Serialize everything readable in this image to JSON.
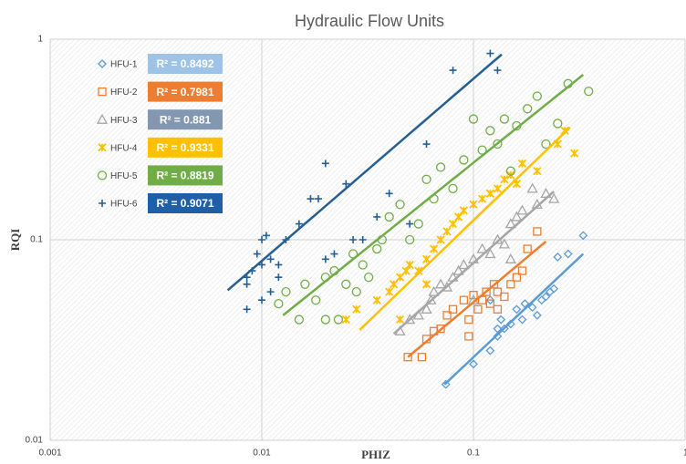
{
  "chart_data": {
    "type": "scatter",
    "title": "Hydraulic Flow Units",
    "x_label": "PHIZ",
    "y_label": "RQI",
    "log_x": true,
    "log_y": true,
    "grid": true,
    "legend": "upper left",
    "xlim": [
      0.001,
      1
    ],
    "ylim": [
      0.01,
      1
    ],
    "xticks": [
      0.001,
      0.01,
      0.1,
      1
    ],
    "yticks": [
      0.01,
      0.1,
      1
    ],
    "series": [
      {
        "name": "HFU-1",
        "color": "#5b9bd5",
        "marker": "diamond",
        "r2_label": "R² = 0.8492",
        "r2_color": "#9dc3e6",
        "x": [
          0.074,
          0.1,
          0.12,
          0.13,
          0.135,
          0.14,
          0.15,
          0.16,
          0.17,
          0.175,
          0.19,
          0.2,
          0.21,
          0.23,
          0.24,
          0.22,
          0.25,
          0.28,
          0.33,
          0.12,
          0.13
        ],
        "values": [
          0.019,
          0.024,
          0.028,
          0.033,
          0.04,
          0.036,
          0.038,
          0.045,
          0.04,
          0.048,
          0.046,
          0.042,
          0.05,
          0.055,
          0.057,
          0.052,
          0.082,
          0.085,
          0.105,
          0.05,
          0.036
        ],
        "trendline": {
          "x": [
            0.073,
            0.33
          ],
          "values": [
            0.019,
            0.085
          ]
        }
      },
      {
        "name": "HFU-2",
        "color": "#ed7d31",
        "marker": "square",
        "r2_label": "R² = 0.7981",
        "r2_color": "#ed7d31",
        "x": [
          0.049,
          0.057,
          0.06,
          0.065,
          0.07,
          0.075,
          0.08,
          0.09,
          0.095,
          0.1,
          0.105,
          0.11,
          0.115,
          0.12,
          0.125,
          0.13,
          0.14,
          0.15,
          0.16,
          0.17,
          0.18,
          0.2,
          0.095,
          0.13
        ],
        "values": [
          0.026,
          0.026,
          0.032,
          0.035,
          0.036,
          0.042,
          0.045,
          0.05,
          0.04,
          0.053,
          0.045,
          0.05,
          0.055,
          0.048,
          0.06,
          0.055,
          0.052,
          0.06,
          0.065,
          0.07,
          0.09,
          0.11,
          0.033,
          0.045
        ],
        "trendline": {
          "x": [
            0.049,
            0.22
          ],
          "values": [
            0.026,
            0.098
          ]
        }
      },
      {
        "name": "HFU-3",
        "color": "#a5a5a5",
        "marker": "triangle",
        "r2_label": "R² = 0.881",
        "r2_color": "#8497b0",
        "x": [
          0.045,
          0.05,
          0.055,
          0.06,
          0.063,
          0.065,
          0.07,
          0.075,
          0.08,
          0.085,
          0.09,
          0.1,
          0.11,
          0.12,
          0.13,
          0.14,
          0.15,
          0.16,
          0.17,
          0.2,
          0.22,
          0.24,
          0.15,
          0.1,
          0.19
        ],
        "values": [
          0.035,
          0.04,
          0.042,
          0.045,
          0.05,
          0.055,
          0.06,
          0.058,
          0.065,
          0.07,
          0.075,
          0.08,
          0.09,
          0.085,
          0.1,
          0.095,
          0.12,
          0.13,
          0.14,
          0.15,
          0.17,
          0.16,
          0.08,
          0.05,
          0.18
        ],
        "trendline": {
          "x": [
            0.042,
            0.24
          ],
          "values": [
            0.034,
            0.174
          ]
        }
      },
      {
        "name": "HFU-4",
        "color": "#ffc000",
        "marker": "asterisk",
        "r2_label": "R² = 0.9331",
        "r2_color": "#ffc000",
        "x": [
          0.025,
          0.028,
          0.035,
          0.04,
          0.042,
          0.045,
          0.048,
          0.05,
          0.055,
          0.06,
          0.065,
          0.07,
          0.075,
          0.08,
          0.085,
          0.09,
          0.1,
          0.11,
          0.12,
          0.13,
          0.14,
          0.15,
          0.17,
          0.2,
          0.25,
          0.27,
          0.3,
          0.16,
          0.045,
          0.06
        ],
        "values": [
          0.04,
          0.045,
          0.05,
          0.055,
          0.06,
          0.065,
          0.07,
          0.075,
          0.07,
          0.08,
          0.09,
          0.1,
          0.11,
          0.12,
          0.13,
          0.14,
          0.15,
          0.16,
          0.17,
          0.18,
          0.2,
          0.21,
          0.24,
          0.22,
          0.3,
          0.35,
          0.27,
          0.19,
          0.04,
          0.06
        ],
        "trendline": {
          "x": [
            0.029,
            0.286
          ],
          "values": [
            0.0355,
            0.363
          ]
        }
      },
      {
        "name": "HFU-5",
        "color": "#70ad47",
        "marker": "circle",
        "r2_label": "R² = 0.8819",
        "r2_color": "#70ad47",
        "x": [
          0.012,
          0.013,
          0.015,
          0.016,
          0.018,
          0.02,
          0.022,
          0.023,
          0.025,
          0.027,
          0.03,
          0.032,
          0.035,
          0.037,
          0.04,
          0.045,
          0.05,
          0.055,
          0.06,
          0.065,
          0.07,
          0.08,
          0.09,
          0.1,
          0.11,
          0.12,
          0.13,
          0.14,
          0.15,
          0.16,
          0.18,
          0.2,
          0.22,
          0.25,
          0.28,
          0.35,
          0.02,
          0.028
        ],
        "values": [
          0.048,
          0.055,
          0.04,
          0.06,
          0.05,
          0.065,
          0.07,
          0.04,
          0.06,
          0.085,
          0.075,
          0.065,
          0.09,
          0.1,
          0.13,
          0.15,
          0.1,
          0.12,
          0.2,
          0.16,
          0.23,
          0.18,
          0.25,
          0.4,
          0.28,
          0.35,
          0.3,
          0.4,
          0.22,
          0.37,
          0.45,
          0.52,
          0.3,
          0.38,
          0.6,
          0.55,
          0.04,
          0.055
        ],
        "trendline": {
          "x": [
            0.0126,
            0.33
          ],
          "values": [
            0.042,
            0.665
          ]
        }
      },
      {
        "name": "HFU-6",
        "color": "#255e91",
        "marker": "plus",
        "r2_label": "R² = 0.9071",
        "r2_color": "#1f5fa8",
        "x": [
          0.0085,
          0.0085,
          0.009,
          0.01,
          0.011,
          0.01,
          0.011,
          0.012,
          0.013,
          0.0095,
          0.01,
          0.0105,
          0.015,
          0.017,
          0.0185,
          0.02,
          0.022,
          0.025,
          0.027,
          0.03,
          0.035,
          0.04,
          0.05,
          0.06,
          0.08,
          0.12,
          0.13,
          0.0085,
          0.012,
          0.02
        ],
        "values": [
          0.06,
          0.065,
          0.07,
          0.075,
          0.08,
          0.05,
          0.055,
          0.065,
          0.1,
          0.085,
          0.1,
          0.105,
          0.12,
          0.16,
          0.16,
          0.24,
          0.085,
          0.19,
          0.1,
          0.1,
          0.13,
          0.17,
          0.12,
          0.3,
          0.7,
          0.85,
          0.7,
          0.045,
          0.075,
          0.08
        ],
        "trendline": {
          "x": [
            0.0069,
            0.136
          ],
          "values": [
            0.056,
            0.84
          ]
        }
      }
    ]
  }
}
